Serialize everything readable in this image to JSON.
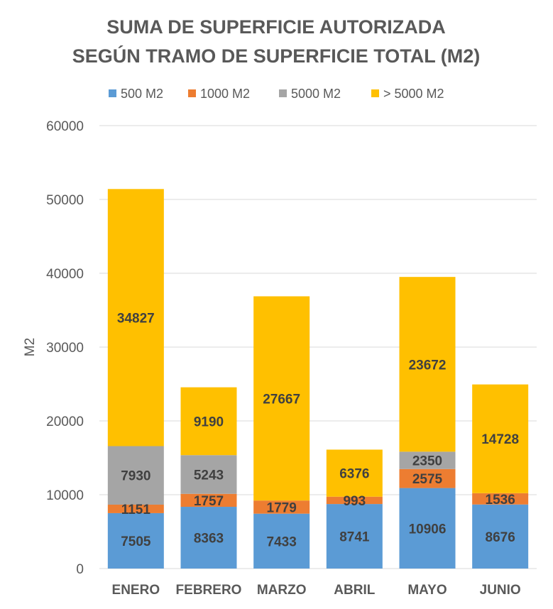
{
  "chart_data": {
    "type": "bar",
    "stacked": true,
    "title_lines": [
      "SUMA DE SUPERFICIE AUTORIZADA",
      "SEGÚN TRAMO DE SUPERFICIE TOTAL (M2)"
    ],
    "ylabel": "M2",
    "xlabel": "",
    "ylim": [
      0,
      60000
    ],
    "yticks": [
      0,
      10000,
      20000,
      30000,
      40000,
      50000,
      60000
    ],
    "grid": true,
    "legend_position": "top",
    "categories": [
      "ENERO",
      "FEBRERO",
      "MARZO",
      "ABRIL",
      "MAYO",
      "JUNIO"
    ],
    "series": [
      {
        "name": "500 M2",
        "color": "#5b9bd5",
        "values": [
          7505,
          8363,
          7433,
          8741,
          10906,
          8676
        ]
      },
      {
        "name": "1000 M2",
        "color": "#ed7d31",
        "values": [
          1151,
          1757,
          1779,
          993,
          2575,
          1536
        ]
      },
      {
        "name": "5000 M2",
        "color": "#a5a5a5",
        "values": [
          7930,
          5243,
          null,
          null,
          2350,
          null
        ]
      },
      {
        "name": "> 5000 M2",
        "color": "#ffc000",
        "values": [
          34827,
          9190,
          27667,
          6376,
          23672,
          14728
        ]
      }
    ]
  }
}
